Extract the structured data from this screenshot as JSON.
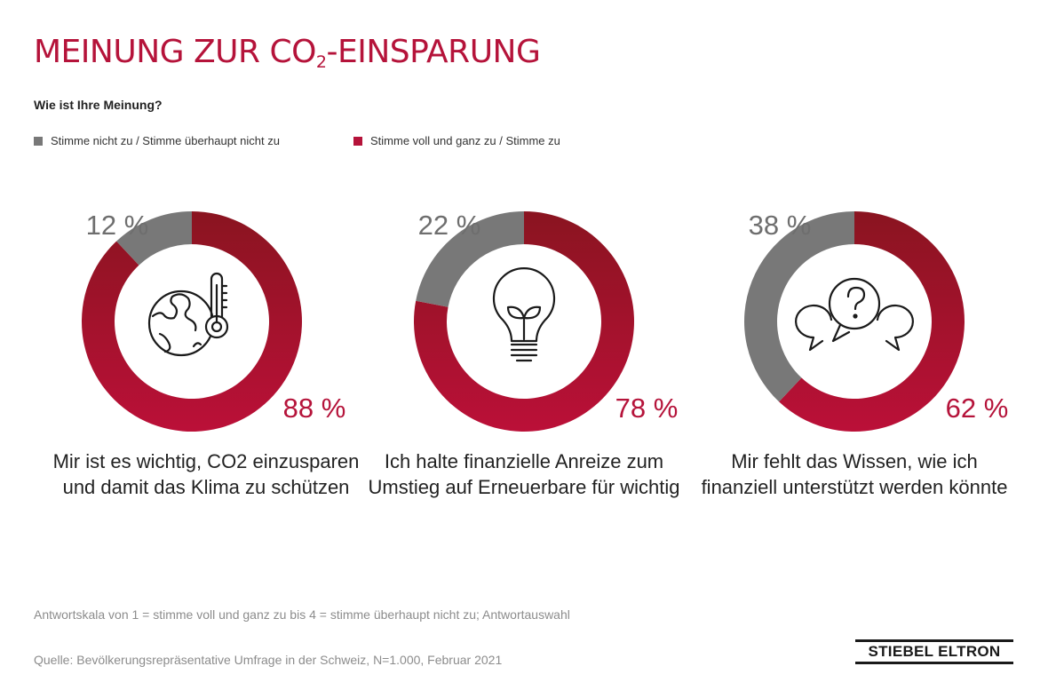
{
  "header": {
    "title_main": "MEINUNG ZUR CO",
    "title_sub": "2",
    "title_rest": "-EINSPARUNG",
    "question": "Wie ist Ihre Meinung?"
  },
  "legend": [
    {
      "label": "Stimme nicht zu / Stimme überhaupt nicht zu",
      "color": "#787878"
    },
    {
      "label": "Stimme voll und ganz zu / Stimme zu",
      "color": "#b5133a"
    }
  ],
  "chart_data": [
    {
      "type": "pie",
      "style": "donut",
      "categories": [
        "Stimme nicht zu / Stimme überhaupt nicht zu",
        "Stimme voll und ganz zu / Stimme zu"
      ],
      "values": [
        12,
        88
      ],
      "value_labels": [
        "12 %",
        "88 %"
      ],
      "icon": "globe-thermometer-icon",
      "caption": "Mir ist es wichtig, CO2 einzusparen und damit das Klima zu schützen"
    },
    {
      "type": "pie",
      "style": "donut",
      "categories": [
        "Stimme nicht zu / Stimme überhaupt nicht zu",
        "Stimme voll und ganz zu / Stimme zu"
      ],
      "values": [
        22,
        78
      ],
      "value_labels": [
        "22 %",
        "78 %"
      ],
      "icon": "lightbulb-sprout-icon",
      "caption": "Ich halte finanzielle Anreize zum Umstieg auf Erneuerbare für wichtig"
    },
    {
      "type": "pie",
      "style": "donut",
      "categories": [
        "Stimme nicht zu / Stimme überhaupt nicht zu",
        "Stimme voll und ganz zu / Stimme zu"
      ],
      "values": [
        38,
        62
      ],
      "value_labels": [
        "38 %",
        "62 %"
      ],
      "icon": "question-speech-bubbles-icon",
      "caption": "Mir fehlt das Wissen, wie ich finanziell unterstützt werden könnte"
    }
  ],
  "colors": {
    "disagree": "#787878",
    "agree": "#b5133a",
    "agree_dark": "#8a1420",
    "disagree_text": "#6e6e6e",
    "agree_text": "#b5133a"
  },
  "footer": {
    "scale_note": "Antwortskala von 1 = stimme voll und ganz zu bis 4 = stimme überhaupt nicht zu; Antwortauswahl",
    "source": "Quelle: Bevölkerungsrepräsentative Umfrage in der Schweiz, N=1.000, Februar 2021",
    "logo": "STIEBEL ELTRON"
  }
}
